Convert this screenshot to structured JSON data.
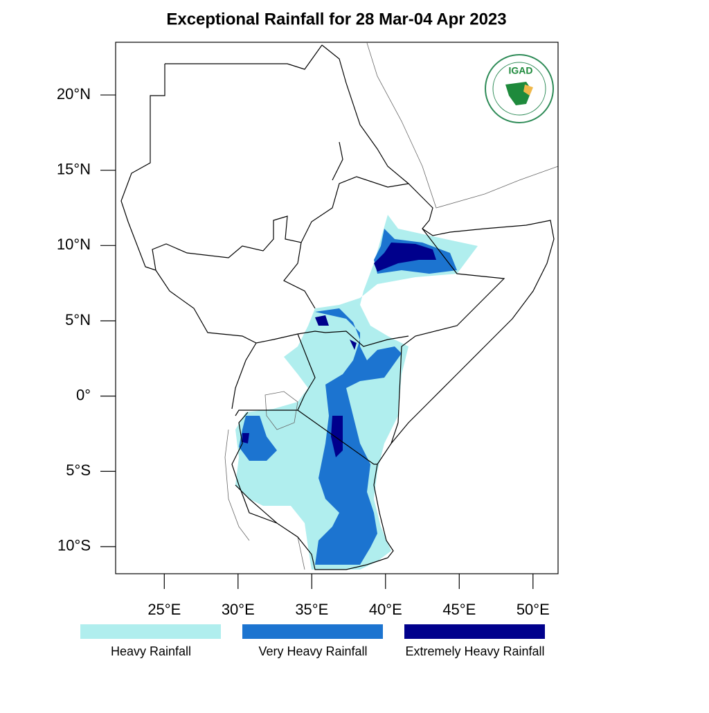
{
  "chart_data": {
    "type": "map",
    "title": "Exceptional Rainfall for 28 Mar-04 Apr 2023",
    "xlim": [
      21.7,
      51.7
    ],
    "ylim": [
      -11.8,
      23.5
    ],
    "xticks": [
      {
        "value": 25,
        "label": "25°E"
      },
      {
        "value": 30,
        "label": "30°E"
      },
      {
        "value": 35,
        "label": "35°E"
      },
      {
        "value": 40,
        "label": "40°E"
      },
      {
        "value": 45,
        "label": "45°E"
      },
      {
        "value": 50,
        "label": "50°E"
      }
    ],
    "yticks": [
      {
        "value": 20,
        "label": "20°N"
      },
      {
        "value": 15,
        "label": "15°N"
      },
      {
        "value": 10,
        "label": "10°N"
      },
      {
        "value": 5,
        "label": "5°N"
      },
      {
        "value": 0,
        "label": "0°"
      },
      {
        "value": -5,
        "label": "5°S"
      },
      {
        "value": -10,
        "label": "10°S"
      }
    ],
    "legend": [
      {
        "label": "Heavy Rainfall",
        "color": "#b0eeee"
      },
      {
        "label": "Very Heavy Rainfall",
        "color": "#1c74d0"
      },
      {
        "label": "Extremely Heavy Rainfall",
        "color": "#00008c"
      }
    ],
    "logo": {
      "text": "IGAD"
    }
  }
}
